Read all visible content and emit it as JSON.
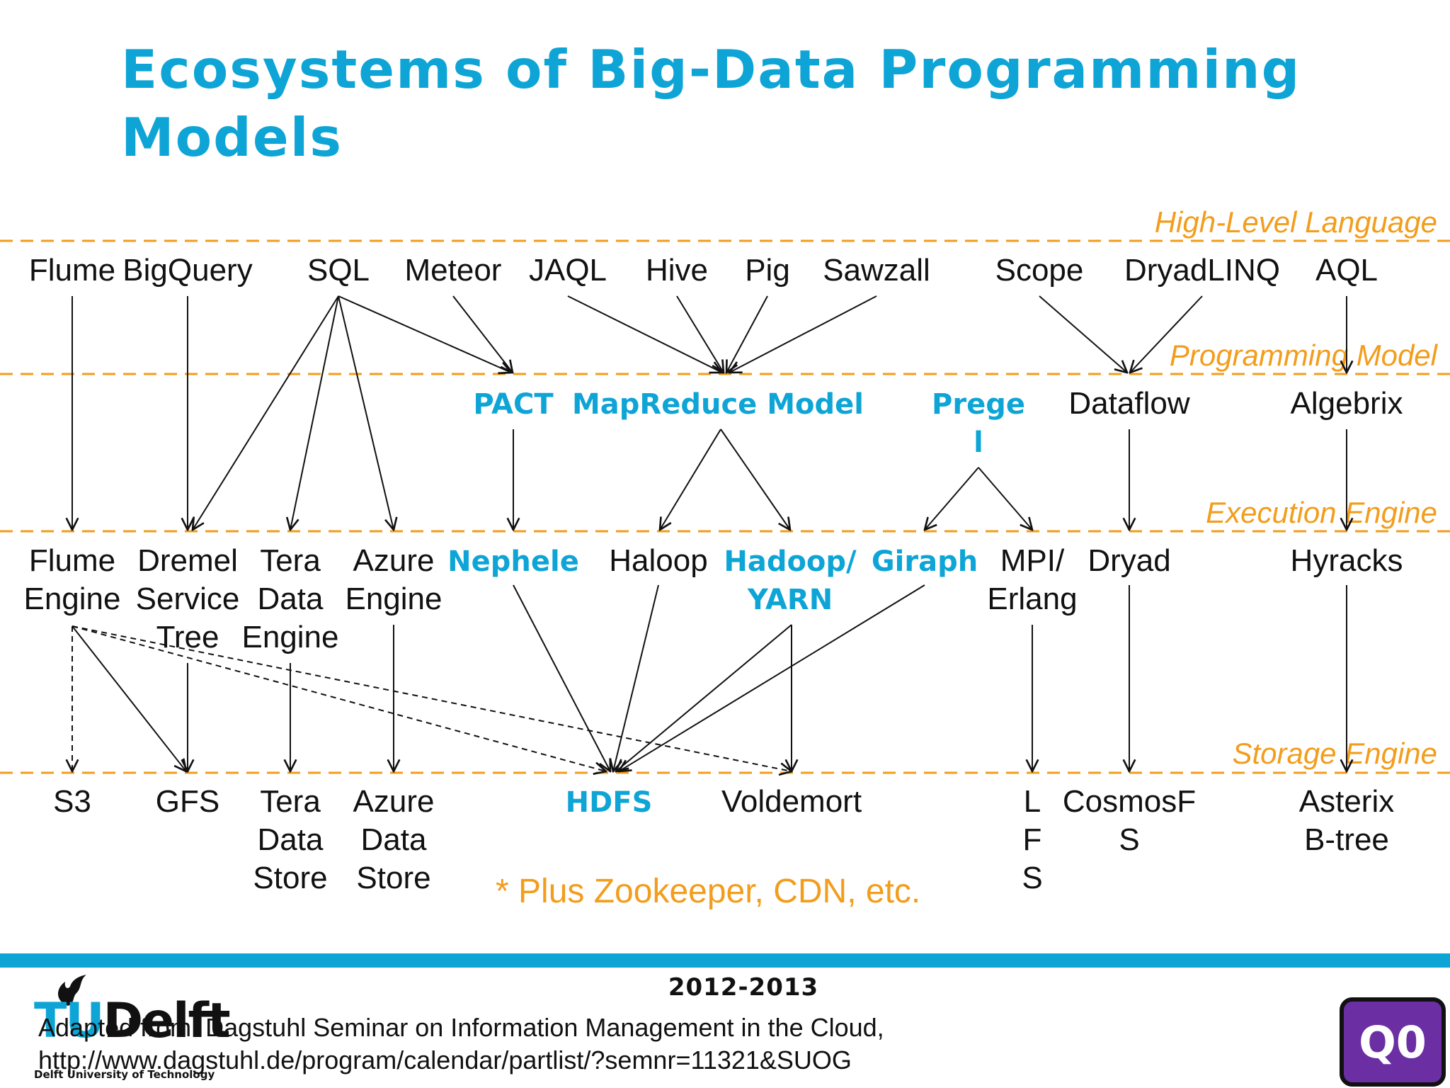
{
  "title": "Ecosystems of Big-Data Programming Models",
  "layers": {
    "high_level": "High-Level Language",
    "programming_model": "Programming Model",
    "execution_engine": "Execution Engine",
    "storage_engine": "Storage Engine"
  },
  "high_level_languages": [
    "Flume",
    "BigQuery",
    "SQL",
    "Meteor",
    "JAQL",
    "Hive",
    "Pig",
    "Sawzall",
    "Scope",
    "DryadLINQ",
    "AQL"
  ],
  "programming_models": [
    "PACT",
    "MapReduce Model",
    "Prege l",
    "Dataflow",
    "Algebrix"
  ],
  "execution_engines": [
    "Flume Engine",
    "Dremel Service Tree",
    "Tera Data Engine",
    "Azure Engine",
    "Nephele",
    "Haloop",
    "Hadoop/ YARN",
    "Giraph",
    "MPI/ Erlang",
    "Dryad",
    "Hyracks"
  ],
  "storage_engines": [
    "S3",
    "GFS",
    "Tera Data Store",
    "Azure Data Store",
    "HDFS",
    "Voldemort",
    "L F S",
    "CosmosF S",
    "Asterix B-tree"
  ],
  "note": "* Plus Zookeeper, CDN, etc.",
  "footer": {
    "year": "2012-2013",
    "logo_text": "TUDelft",
    "logo_subtitle": "Delft University of Technology",
    "source_line1": "Adapted from: Dagstuhl Seminar on Information Management in the Cloud,",
    "source_line2": "http://www.dagstuhl.de/program/calendar/partlist/?semnr=11321&SUOG",
    "badge": "Q0"
  },
  "colors": {
    "accent_blue": "#0ea5d6",
    "layer_orange": "#f29d1c",
    "badge_purple": "#6b2fa3"
  }
}
